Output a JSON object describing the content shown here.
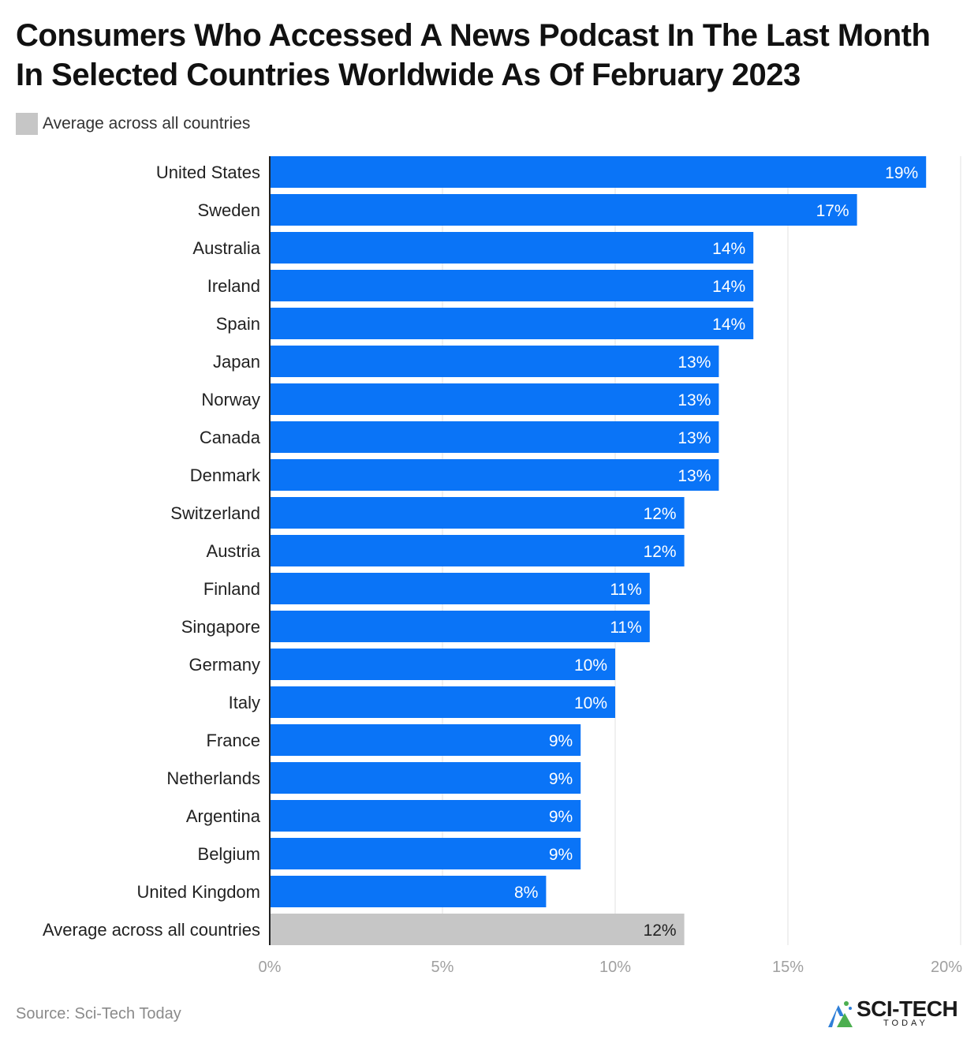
{
  "header": {
    "title": "Consumers Who Accessed A News Podcast In The Last Month In Selected Countries Worldwide As Of February 2023"
  },
  "legend": {
    "label": "Average across all countries",
    "color": "#c6c6c6"
  },
  "footer": {
    "source": "Source: Sci-Tech Today"
  },
  "logo": {
    "main": "SCI-TECH",
    "sub": "TODAY"
  },
  "colors": {
    "bar": "#0a74f7",
    "highlight": "#c6c6c6",
    "grid": "#e2e2e2",
    "axis": "#222222"
  },
  "chart_data": {
    "type": "bar",
    "orientation": "horizontal",
    "title": "Consumers Who Accessed A News Podcast In The Last Month In Selected Countries Worldwide As Of February 2023",
    "categories": [
      "United States",
      "Sweden",
      "Australia",
      "Ireland",
      "Spain",
      "Japan",
      "Norway",
      "Canada",
      "Denmark",
      "Switzerland",
      "Austria",
      "Finland",
      "Singapore",
      "Germany",
      "Italy",
      "France",
      "Netherlands",
      "Argentina",
      "Belgium",
      "United Kingdom",
      "Average across all countries"
    ],
    "values": [
      19,
      17,
      14,
      14,
      14,
      13,
      13,
      13,
      13,
      12,
      12,
      11,
      11,
      10,
      10,
      9,
      9,
      9,
      9,
      8,
      12
    ],
    "value_labels": [
      "19%",
      "17%",
      "14%",
      "14%",
      "14%",
      "13%",
      "13%",
      "13%",
      "13%",
      "12%",
      "12%",
      "11%",
      "11%",
      "10%",
      "10%",
      "9%",
      "9%",
      "9%",
      "9%",
      "8%",
      "12%"
    ],
    "highlight": "Average across all countries",
    "xlim": [
      0,
      20
    ],
    "xticks": [
      0,
      5,
      10,
      15,
      20
    ],
    "xtick_labels": [
      "0%",
      "5%",
      "10%",
      "15%",
      "20%"
    ],
    "xlabel": "",
    "ylabel": "",
    "grid": true,
    "legend_position": "top-left"
  }
}
